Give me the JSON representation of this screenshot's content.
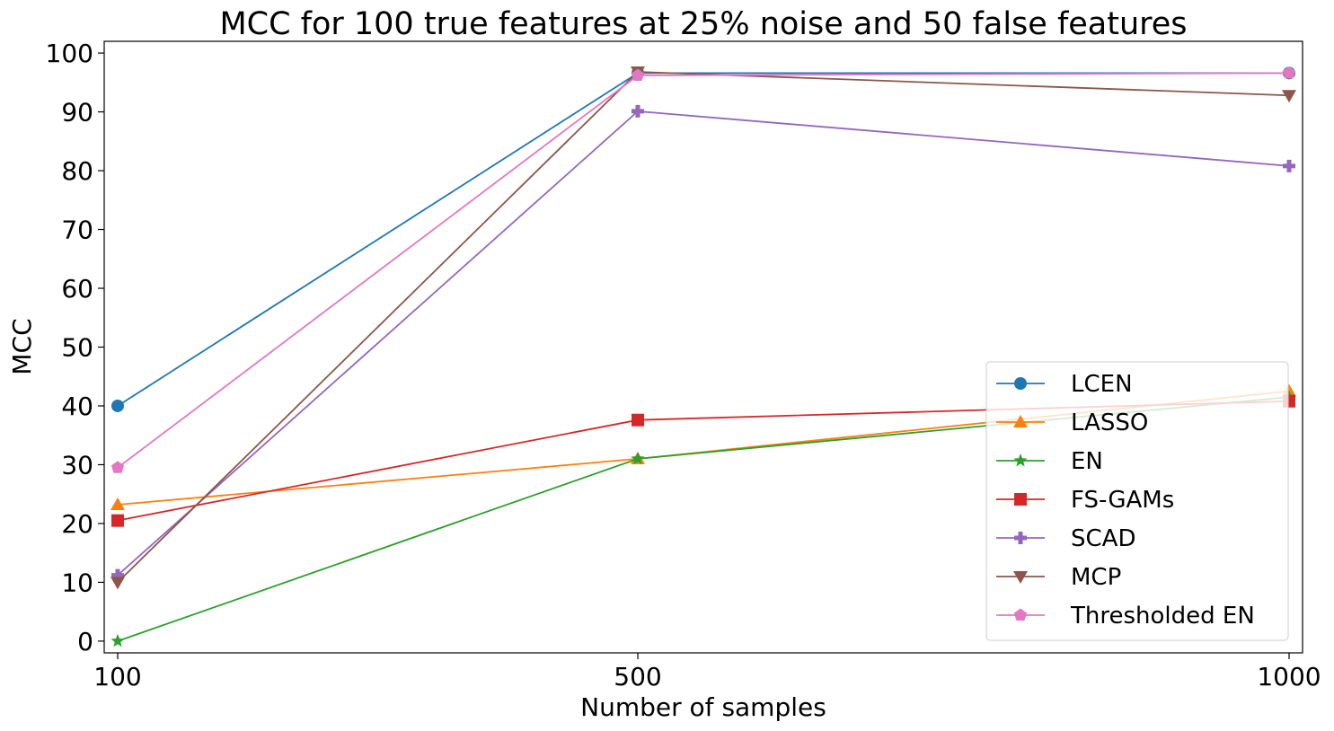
{
  "chart_data": {
    "type": "line",
    "title": "MCC for 100 true features at 25% noise and 50 false features",
    "xlabel": "Number of samples",
    "ylabel": "MCC",
    "x": [
      100,
      500,
      1000
    ],
    "xticks": [
      "100",
      "500",
      "1000"
    ],
    "yticks": [
      "0",
      "10",
      "20",
      "30",
      "40",
      "50",
      "60",
      "70",
      "80",
      "90",
      "100"
    ],
    "ylim": [
      -2,
      102
    ],
    "grid": false,
    "legend_position": "lower-right",
    "series": [
      {
        "name": "LCEN",
        "color": "#1f77b4",
        "marker": "circle",
        "values": [
          40.0,
          96.6,
          96.6
        ]
      },
      {
        "name": "LASSO",
        "color": "#ff7f0e",
        "marker": "triangle-up",
        "values": [
          23.2,
          31.0,
          42.5
        ]
      },
      {
        "name": "EN",
        "color": "#2ca02c",
        "marker": "star",
        "values": [
          0.0,
          31.0,
          41.5
        ]
      },
      {
        "name": "FS-GAMs",
        "color": "#d62728",
        "marker": "square",
        "values": [
          20.5,
          37.6,
          40.8
        ]
      },
      {
        "name": "SCAD",
        "color": "#9467bd",
        "marker": "plus",
        "values": [
          11.2,
          90.1,
          80.8
        ]
      },
      {
        "name": "MCP",
        "color": "#8c564b",
        "marker": "triangle-down",
        "values": [
          10.0,
          96.8,
          92.8
        ]
      },
      {
        "name": "Thresholded EN",
        "color": "#e377c2",
        "marker": "pentagon",
        "values": [
          29.5,
          96.2,
          96.6
        ]
      }
    ]
  }
}
